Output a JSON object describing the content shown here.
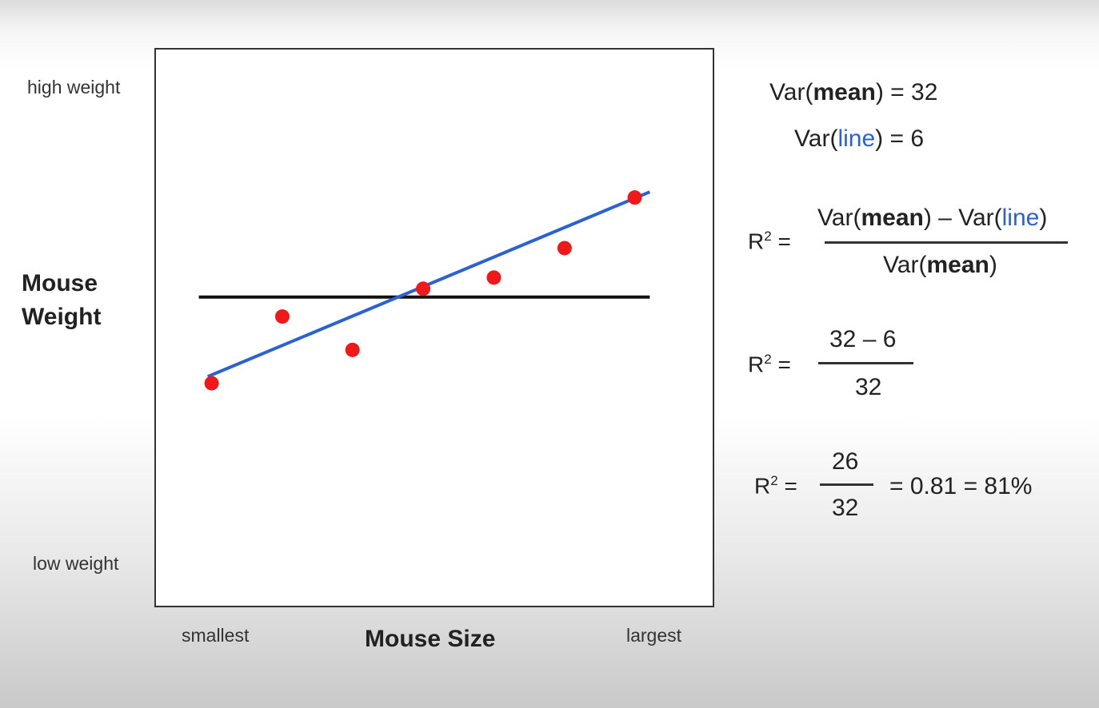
{
  "chart_data": {
    "type": "scatter",
    "title": "",
    "xlabel": "Mouse Size",
    "ylabel_lines": [
      "Mouse",
      "Weight"
    ],
    "x_tick_labels": {
      "min": "smallest",
      "max": "largest"
    },
    "y_tick_labels": {
      "max": "high weight",
      "min": "low weight"
    },
    "xlim": [
      0,
      10
    ],
    "ylim": [
      0,
      10
    ],
    "points": [
      {
        "x": 1.0,
        "y": 4.0
      },
      {
        "x": 2.27,
        "y": 5.2
      },
      {
        "x": 3.53,
        "y": 4.6
      },
      {
        "x": 4.8,
        "y": 5.7
      },
      {
        "x": 6.07,
        "y": 5.9
      },
      {
        "x": 7.34,
        "y": 6.43
      },
      {
        "x": 8.6,
        "y": 7.34
      }
    ],
    "mean_line": {
      "y": 5.55,
      "x_range": [
        0.77,
        8.87
      ]
    },
    "fit_line": {
      "start": {
        "x": 0.93,
        "y": 4.12
      },
      "end": {
        "x": 8.87,
        "y": 7.44
      }
    },
    "colors": {
      "points": "#f01818",
      "fit_line": "#2a62d6",
      "mean_line": "#111111"
    }
  },
  "equations": {
    "var_mean": {
      "prefix": "Var(",
      "bold": "mean",
      "suffix": ") = 32"
    },
    "var_line": {
      "prefix": "Var(",
      "blue": "line",
      "suffix": ") = 6"
    },
    "r2_label": "R",
    "r2_sup": "2",
    "r2_eq": " =",
    "formula_num": {
      "p1": "Var(",
      "b1": "mean",
      "p2": ") – Var(",
      "blue": "line",
      "p3": ")"
    },
    "formula_den": {
      "p1": "Var(",
      "b1": "mean",
      "p2": ")"
    },
    "step2_num": "32 – 6",
    "step2_den": "32",
    "step3_num": "26",
    "step3_den": "32",
    "result": "= 0.81 = 81%"
  }
}
